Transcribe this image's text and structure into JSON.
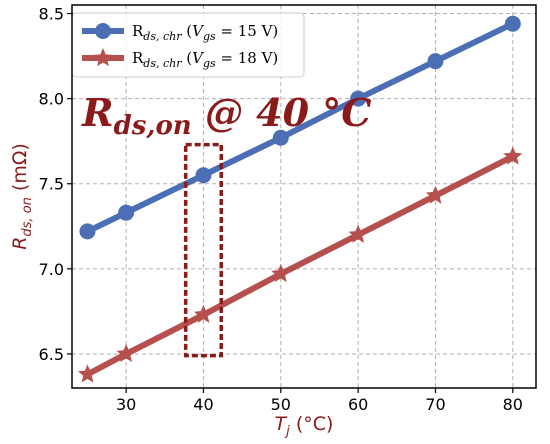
{
  "chart_data": {
    "type": "line",
    "title": "",
    "xlabel": "T_j (°C)",
    "ylabel": "R_ds,on (mΩ)",
    "xlim": [
      23,
      83
    ],
    "ylim": [
      6.3,
      8.55
    ],
    "xticks": [
      30,
      40,
      50,
      60,
      70,
      80
    ],
    "yticks": [
      6.5,
      7.0,
      7.5,
      8.0,
      8.5
    ],
    "grid": true,
    "legend_position": "top-left",
    "series": [
      {
        "name": "Rds,chr (Vgs = 15 V)",
        "marker": "circle",
        "color": "#4c6eb4",
        "x": [
          25,
          30,
          40,
          50,
          60,
          70,
          80
        ],
        "y": [
          7.22,
          7.33,
          7.55,
          7.77,
          8.0,
          8.22,
          8.44
        ]
      },
      {
        "name": "Rds,chr (Vgs = 18 V)",
        "marker": "star",
        "color": "#b5504e",
        "x": [
          25,
          30,
          40,
          50,
          60,
          70,
          80
        ],
        "y": [
          6.38,
          6.5,
          6.73,
          6.97,
          7.2,
          7.43,
          7.66
        ]
      }
    ],
    "annotation": {
      "text": "R_ds,on @ 40 °C",
      "highlight_x": [
        37.7,
        42.3
      ],
      "highlight_y": [
        6.49,
        7.73
      ],
      "color": "#8b1a1a"
    }
  }
}
